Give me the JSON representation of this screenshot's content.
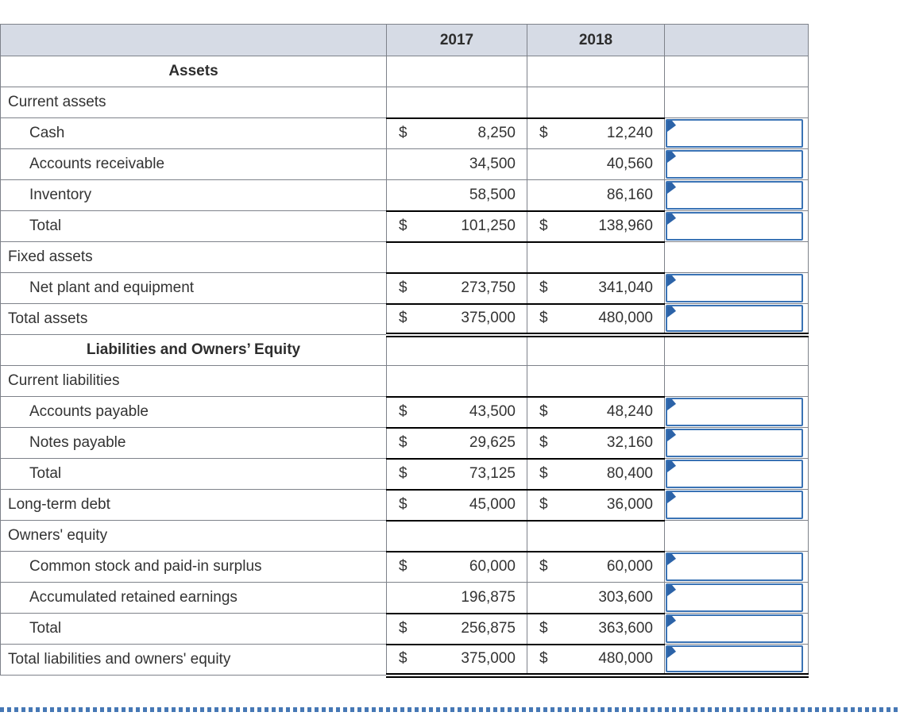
{
  "header": {
    "year1": "2017",
    "year2": "2018"
  },
  "colors": {
    "header_bg": "#d6dbe5",
    "grid_line": "#7e828a",
    "block_border": "#000000",
    "input_border": "#3a73b5",
    "input_flag": "#2c63a8",
    "dotted_divider": "#4678b5",
    "text": "#333333"
  },
  "rows": [
    {
      "label": "Assets",
      "style": "section"
    },
    {
      "label": "Current assets",
      "style": "group"
    },
    {
      "label": "Cash",
      "style": "item",
      "dollar": true,
      "y2017": "8,250",
      "y2018": "12,240",
      "input": true,
      "bt": "b"
    },
    {
      "label": "Accounts receivable",
      "style": "item",
      "dollar": false,
      "y2017": "34,500",
      "y2018": "40,560",
      "input": true
    },
    {
      "label": "Inventory",
      "style": "item",
      "dollar": false,
      "y2017": "58,500",
      "y2018": "86,160",
      "input": true
    },
    {
      "label": "Total",
      "style": "item",
      "dollar": true,
      "y2017": "101,250",
      "y2018": "138,960",
      "input": true,
      "bt": "b",
      "bb": "b"
    },
    {
      "label": "Fixed assets",
      "style": "group"
    },
    {
      "label": "Net plant and equipment",
      "style": "item",
      "dollar": true,
      "y2017": "273,750",
      "y2018": "341,040",
      "input": true,
      "bt": "b",
      "bb": "b"
    },
    {
      "label": "Total assets",
      "style": "group",
      "dollar": true,
      "y2017": "375,000",
      "y2018": "480,000",
      "input": true,
      "bb": "d"
    },
    {
      "label": "Liabilities and Owners’ Equity",
      "style": "section"
    },
    {
      "label": "Current liabilities",
      "style": "group"
    },
    {
      "label": "Accounts payable",
      "style": "item",
      "dollar": true,
      "y2017": "43,500",
      "y2018": "48,240",
      "input": true,
      "bt": "b",
      "bb": "b"
    },
    {
      "label": "Notes payable",
      "style": "item",
      "dollar": true,
      "y2017": "29,625",
      "y2018": "32,160",
      "input": true,
      "bb": "b"
    },
    {
      "label": "Total",
      "style": "item",
      "dollar": true,
      "y2017": "73,125",
      "y2018": "80,400",
      "input": true,
      "bt": "b",
      "bb": "b"
    },
    {
      "label": "Long-term debt",
      "style": "group",
      "dollar": true,
      "y2017": "45,000",
      "y2018": "36,000",
      "input": true,
      "bb": "b"
    },
    {
      "label": "Owners' equity",
      "style": "group"
    },
    {
      "label": "Common stock and paid-in surplus",
      "style": "item",
      "dollar": true,
      "y2017": "60,000",
      "y2018": "60,000",
      "input": true,
      "bt": "b"
    },
    {
      "label": "Accumulated retained earnings",
      "style": "item",
      "dollar": false,
      "y2017": "196,875",
      "y2018": "303,600",
      "input": true
    },
    {
      "label": "Total",
      "style": "item",
      "dollar": true,
      "y2017": "256,875",
      "y2018": "363,600",
      "input": true,
      "bt": "b",
      "bb": "b"
    },
    {
      "label": "Total liabilities and owners' equity",
      "style": "group",
      "dollar": true,
      "y2017": "375,000",
      "y2018": "480,000",
      "input": true,
      "bb": "d"
    }
  ]
}
